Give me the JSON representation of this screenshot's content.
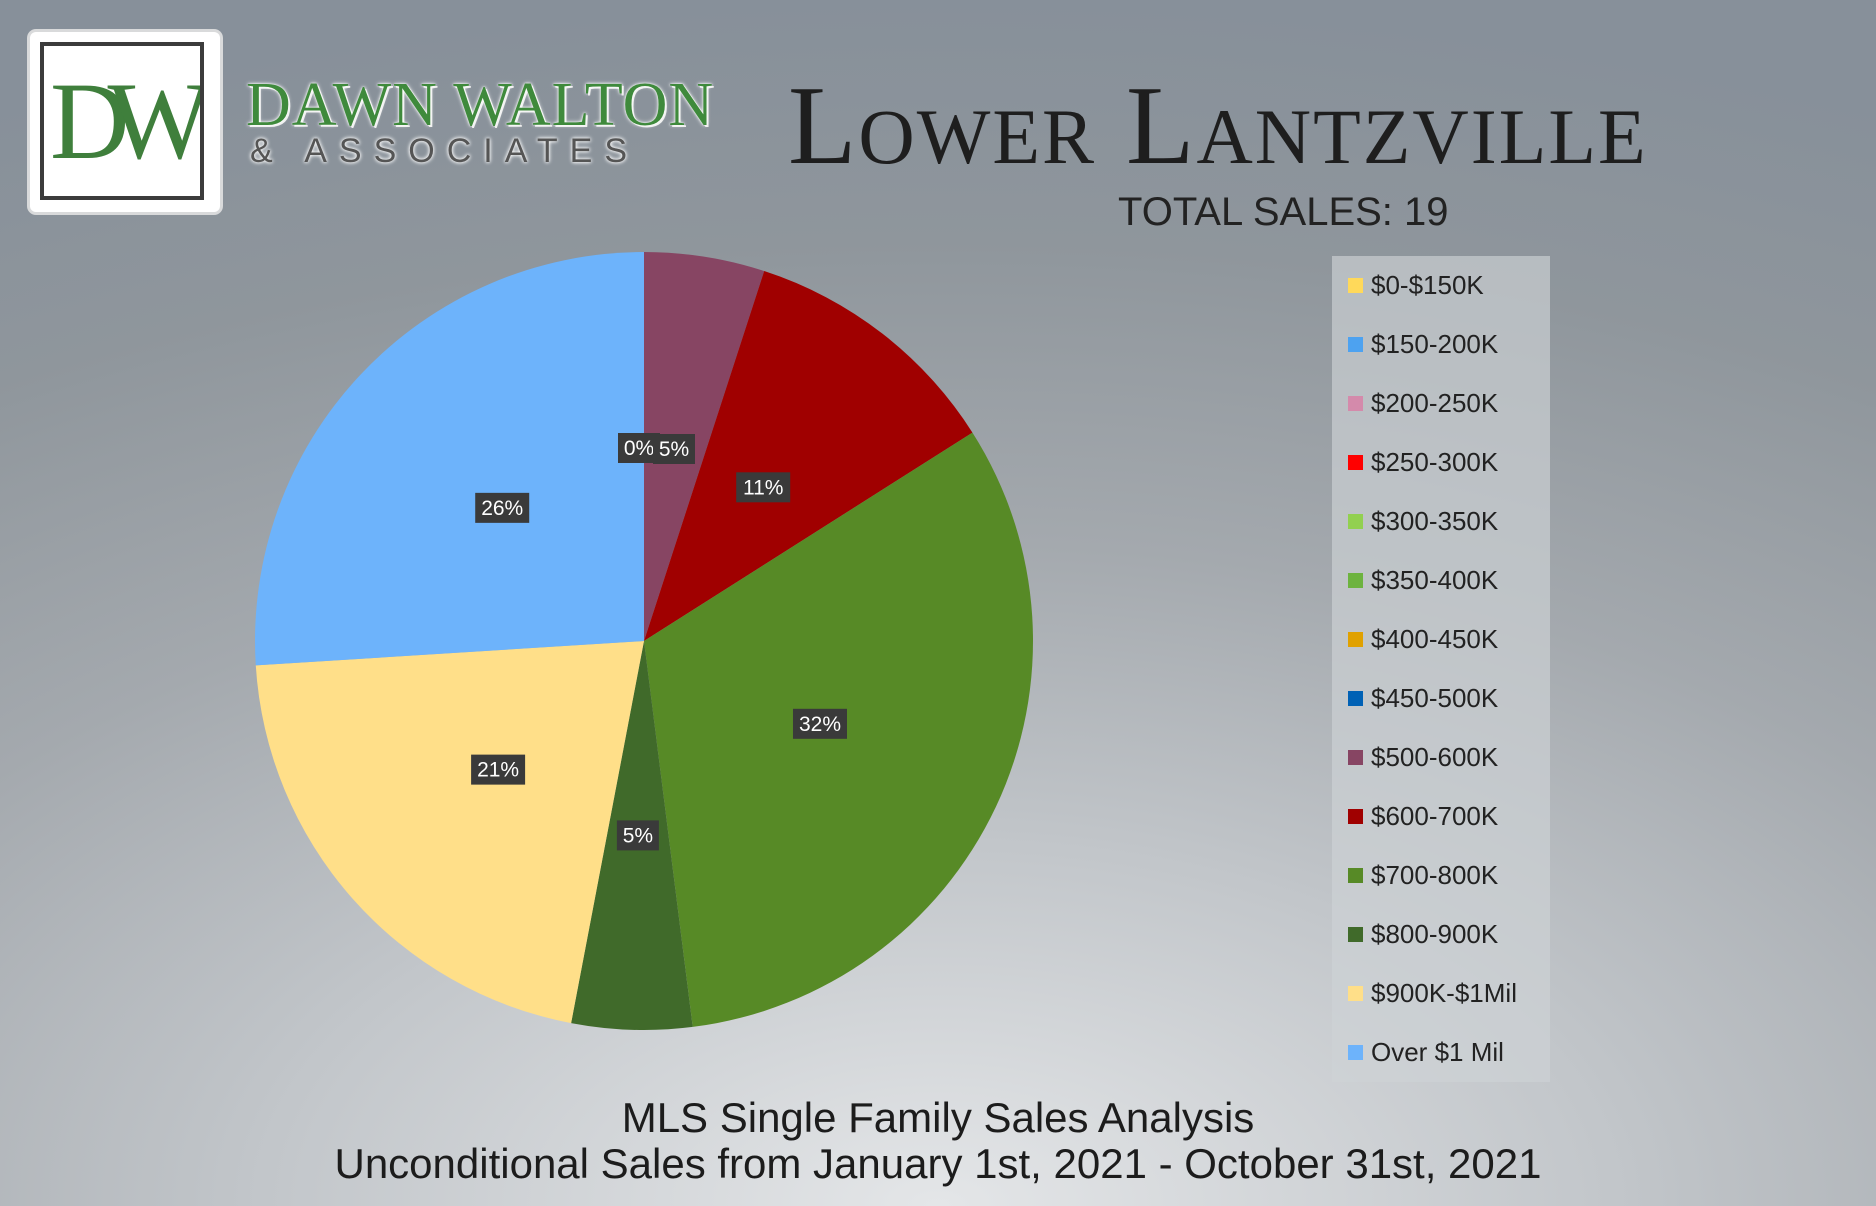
{
  "brand": {
    "logo_letters": "DW",
    "name": "DAWN WALTON",
    "sub": "& ASSOCIATES"
  },
  "header": {
    "title": "Lower Lantzville",
    "total_sales": "TOTAL SALES: 19"
  },
  "footer": {
    "line1": "MLS Single Family Sales Analysis",
    "line2": "Unconditional Sales from January 1st, 2021 - October 31st, 2021"
  },
  "chart_data": {
    "type": "pie",
    "unit": "%",
    "legend_position": "right",
    "slices": [
      {
        "label": "$0-$150K",
        "value": 0,
        "color": "#ffd95a",
        "data_label": ""
      },
      {
        "label": "$150-200K",
        "value": 0,
        "color": "#4da2f0",
        "data_label": ""
      },
      {
        "label": "$200-250K",
        "value": 0,
        "color": "#d48aab",
        "data_label": ""
      },
      {
        "label": "$250-300K",
        "value": 0,
        "color": "#ff0000",
        "data_label": ""
      },
      {
        "label": "$300-350K",
        "value": 0,
        "color": "#92d050",
        "data_label": ""
      },
      {
        "label": "$350-400K",
        "value": 0,
        "color": "#6db33f",
        "data_label": ""
      },
      {
        "label": "$400-450K",
        "value": 0,
        "color": "#e0a100",
        "data_label": ""
      },
      {
        "label": "$450-500K",
        "value": 0,
        "color": "#0061b5",
        "data_label": "0%"
      },
      {
        "label": "$500-600K",
        "value": 5,
        "color": "#874563",
        "data_label": "5%"
      },
      {
        "label": "$600-700K",
        "value": 11,
        "color": "#a00000",
        "data_label": "11%"
      },
      {
        "label": "$700-800K",
        "value": 32,
        "color": "#578a26",
        "data_label": "32%"
      },
      {
        "label": "$800-900K",
        "value": 5,
        "color": "#406a2a",
        "data_label": "5%"
      },
      {
        "label": "$900K-$1Mil",
        "value": 21,
        "color": "#ffdf89",
        "data_label": "21%"
      },
      {
        "label": "Over $1 Mil",
        "value": 26,
        "color": "#6db3fb",
        "data_label": "26%"
      }
    ]
  }
}
